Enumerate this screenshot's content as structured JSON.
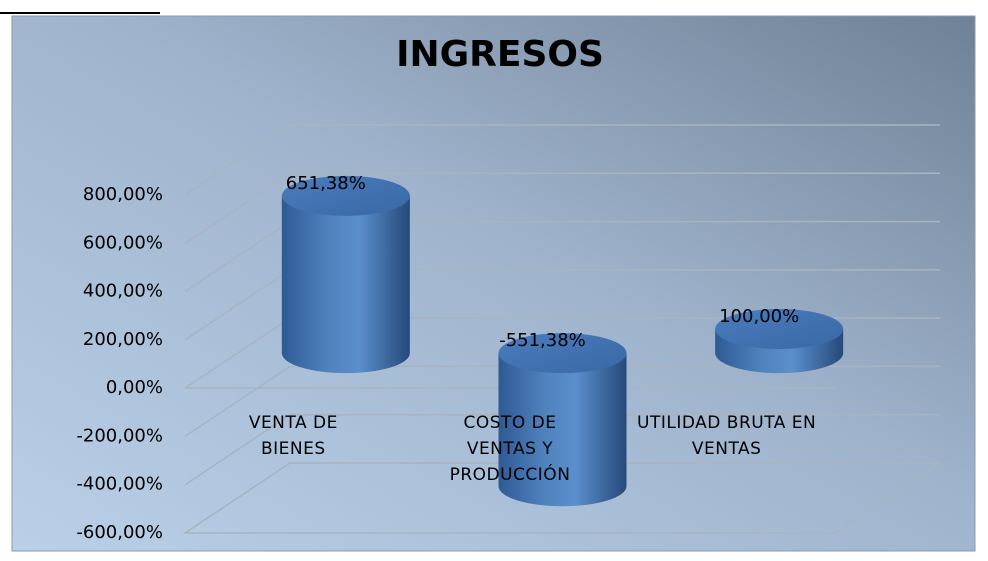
{
  "chart_data": {
    "type": "cylinder",
    "title": "INGRESOS",
    "categories": [
      "VENTA DE BIENES",
      "COSTO DE VENTAS Y PRODUCCIÓN",
      "UTILIDAD BRUTA EN VENTAS"
    ],
    "values": [
      651.38,
      -551.38,
      100
    ],
    "value_labels": [
      "651,38%",
      "-551,38%",
      "100,00%"
    ],
    "color": "#4f81bd",
    "ylim": [
      -600,
      800
    ],
    "yticks": [
      {
        "value": -600,
        "label": "-600,00%"
      },
      {
        "value": -400,
        "label": "-400,00%"
      },
      {
        "value": -200,
        "label": "-200,00%"
      },
      {
        "value": 0,
        "label": "0,00%"
      },
      {
        "value": 200,
        "label": "200,00%"
      },
      {
        "value": 400,
        "label": "400,00%"
      },
      {
        "value": 600,
        "label": "600,00%"
      },
      {
        "value": 800,
        "label": "800,00%"
      }
    ],
    "grid": true
  }
}
